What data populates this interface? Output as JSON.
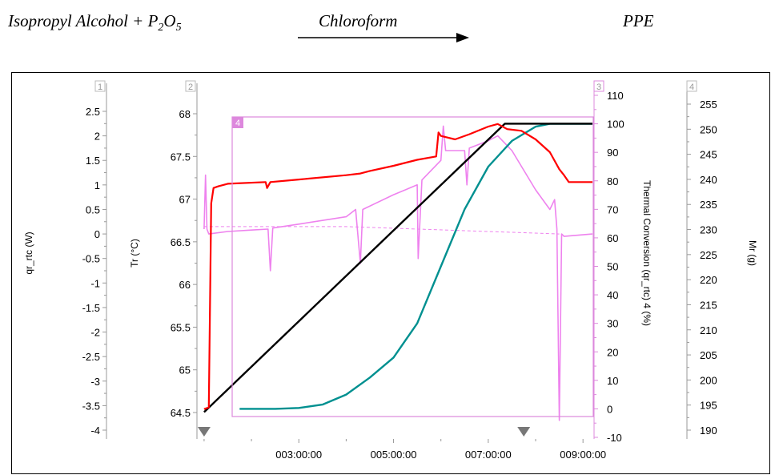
{
  "header": {
    "reactants_prefix": "Isopropyl Alcohol + P",
    "reactants_sub1": "2",
    "reactants_mid": "O",
    "reactants_sub2": "5",
    "solvent": "Chloroform",
    "product": "PPE"
  },
  "colors": {
    "qr_rtc": "#ee82ee",
    "Tr": "#ff0000",
    "thermal_conversion": "#009090",
    "Mr": "#000000",
    "axis_panel": "#dd88dd",
    "axis_gray": "#999999"
  },
  "chart_data": {
    "type": "line",
    "x_axis": {
      "unit": "hh:mm:ss",
      "ticks": [
        "003:00:00",
        "005:00:00",
        "007:00:00",
        "009:00:00"
      ],
      "tick_hours": [
        3,
        5,
        7,
        9
      ],
      "range_hours": [
        0.9,
        9.2
      ]
    },
    "axes": [
      {
        "id": "1",
        "label": "qr_rtc (W)",
        "ylim": [
          -4.2,
          2.8
        ],
        "ticks": [
          "2.5",
          "2",
          "1.5",
          "1",
          "0.5",
          "0",
          "-0.5",
          "-1",
          "-1.5",
          "-2",
          "-2.5",
          "-3",
          "-3.5",
          "-4"
        ]
      },
      {
        "id": "2",
        "label": "Tr (°C)",
        "ylim": [
          64.4,
          68.2
        ],
        "ticks": [
          "68",
          "67.5",
          "67",
          "66.5",
          "66",
          "65.5",
          "65",
          "64.5"
        ]
      },
      {
        "id": "3",
        "label": "Thermal Conversion (qr_rtc) 4 (%)",
        "ylim": [
          -12,
          114
        ],
        "ticks": [
          "110",
          "100",
          "90",
          "80",
          "70",
          "60",
          "50",
          "40",
          "30",
          "20",
          "10",
          "0",
          "-10"
        ]
      },
      {
        "id": "4",
        "label": "Mr (g)",
        "ylim": [
          188,
          258
        ],
        "ticks": [
          "255",
          "250",
          "245",
          "240",
          "235",
          "230",
          "225",
          "220",
          "215",
          "210",
          "205",
          "200",
          "195",
          "190"
        ]
      }
    ],
    "inner_panel_label": "4",
    "markers_hours": [
      1.0,
      7.75
    ],
    "series": [
      {
        "name": "Tr",
        "axis": "2",
        "x": [
          1.0,
          1.1,
          1.15,
          1.2,
          1.3,
          1.5,
          2.3,
          2.33,
          2.4,
          3.0,
          4.0,
          4.3,
          4.5,
          5.0,
          5.5,
          5.9,
          5.95,
          6.0,
          6.3,
          6.6,
          7.0,
          7.2,
          7.4,
          7.7,
          8.0,
          8.3,
          8.5,
          8.6,
          8.7,
          9.2
        ],
        "y": [
          64.54,
          64.56,
          66.95,
          67.13,
          67.15,
          67.18,
          67.2,
          67.13,
          67.2,
          67.23,
          67.28,
          67.3,
          67.33,
          67.39,
          67.46,
          67.5,
          67.78,
          67.74,
          67.7,
          67.76,
          67.85,
          67.88,
          67.82,
          67.8,
          67.7,
          67.55,
          67.35,
          67.28,
          67.2,
          67.2
        ]
      },
      {
        "name": "qr_rtc",
        "axis": "1",
        "x": [
          1.0,
          1.03,
          1.06,
          1.1,
          1.5,
          2.0,
          2.35,
          2.4,
          2.45,
          3.0,
          4.0,
          4.2,
          4.3,
          4.35,
          5.0,
          5.5,
          5.52,
          5.6,
          6.0,
          6.05,
          6.1,
          6.5,
          6.55,
          6.6,
          7.0,
          7.2,
          7.5,
          8.0,
          8.3,
          8.4,
          8.45,
          8.5,
          8.55,
          8.6,
          9.2
        ],
        "y": [
          0.1,
          1.2,
          0.1,
          0.0,
          0.05,
          0.08,
          0.1,
          -0.75,
          0.12,
          0.2,
          0.35,
          0.5,
          -0.6,
          0.5,
          0.8,
          1.0,
          -0.5,
          1.1,
          1.5,
          2.2,
          1.7,
          1.7,
          1.0,
          1.75,
          1.9,
          2.0,
          1.7,
          0.9,
          0.5,
          0.7,
          0.1,
          -3.8,
          0.0,
          -0.05,
          0.0
        ]
      },
      {
        "name": "qr_rtc baseline",
        "axis": "1",
        "dashed": true,
        "x": [
          1.0,
          4.0,
          7.0,
          8.5
        ],
        "y": [
          0.15,
          0.15,
          0.05,
          0.0
        ]
      },
      {
        "name": "Thermal Conversion",
        "axis": "3",
        "x": [
          1.75,
          2.5,
          3.0,
          3.5,
          4.0,
          4.5,
          5.0,
          5.5,
          6.0,
          6.5,
          7.0,
          7.5,
          8.0,
          8.3,
          8.5,
          9.2
        ],
        "y": [
          0,
          0,
          0.3,
          1.5,
          5,
          11,
          18,
          30,
          50,
          70,
          85,
          94,
          99,
          100,
          100,
          100
        ]
      },
      {
        "name": "Mr",
        "axis": "4",
        "x": [
          1.0,
          7.35,
          9.2
        ],
        "y": [
          193.6,
          251.1,
          251.1
        ]
      }
    ]
  }
}
